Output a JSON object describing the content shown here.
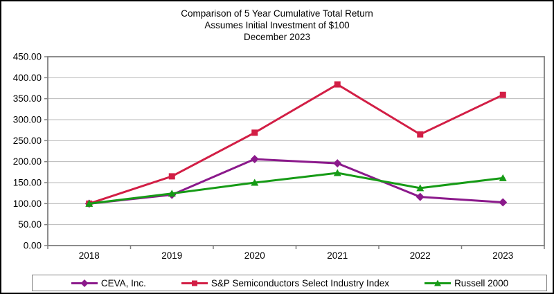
{
  "title": {
    "line1": "Comparison of 5 Year Cumulative Total Return",
    "line2": "Assumes Initial Investment of $100",
    "line3": "December 2023"
  },
  "chart_data": {
    "type": "line",
    "categories": [
      "2018",
      "2019",
      "2020",
      "2021",
      "2022",
      "2023"
    ],
    "series": [
      {
        "name": "CEVA, Inc.",
        "marker": "diamond",
        "color": "#8B198B",
        "values": [
          100,
          121,
          206,
          196,
          116,
          103
        ]
      },
      {
        "name": "S&P Semiconductors Select Industry Index",
        "marker": "square",
        "color": "#D21E45",
        "values": [
          100,
          165,
          269,
          384,
          265,
          359
        ]
      },
      {
        "name": "Russell 2000",
        "marker": "triangle",
        "color": "#169B16",
        "values": [
          100,
          124,
          150,
          173,
          137,
          161
        ]
      }
    ],
    "ylim": [
      0,
      450
    ],
    "ystep": 50,
    "y_tick_labels": [
      "0.00",
      "50.00",
      "100.00",
      "150.00",
      "200.00",
      "250.00",
      "300.00",
      "350.00",
      "400.00",
      "450.00"
    ],
    "grid": true,
    "legend_position": "bottom",
    "colors": {
      "gridline": "#b8b8b8",
      "frame": "#7f7f7f",
      "background": "#ffffff",
      "outer_border": "#000000"
    }
  }
}
